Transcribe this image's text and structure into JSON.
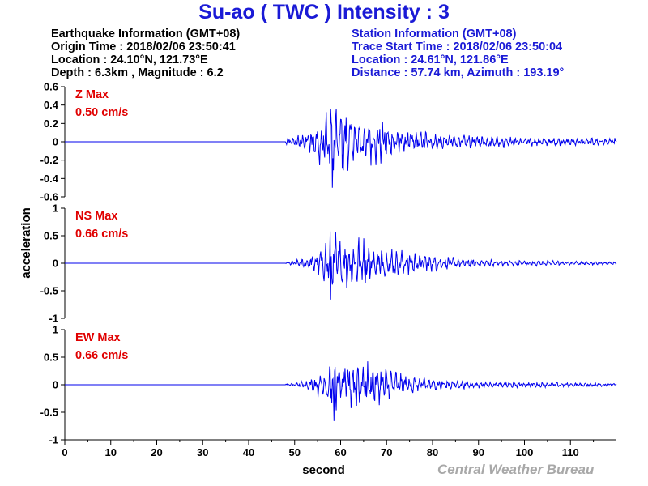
{
  "title": "Su-ao ( TWC ) Intensity : 3",
  "earthquake": {
    "heading": "Earthquake Information  (GMT+08)",
    "origin_time": "Origin Time : 2018/02/06 23:50:41",
    "location": "Location : 24.10°N, 121.73°E",
    "depth_magnitude": "Depth : 6.3km , Magnitude : 6.2"
  },
  "station": {
    "heading": "Station Information  (GMT+08)",
    "trace_start": "Trace Start Time : 2018/02/06 23:50:04",
    "location": "Location : 24.61°N, 121.86°E",
    "distance": "Distance : 57.74 km, Azimuth : 193.19°"
  },
  "credit": "Central Weather Bureau",
  "colors": {
    "title": "#1a1ad6",
    "trace": "#0000ee",
    "max_label": "#e00000",
    "credit": "#a8a8a8"
  },
  "chart_data": [
    {
      "type": "line",
      "component": "Z",
      "max_label": "Z Max",
      "max_value": "0.50 cm/s",
      "ylim": [
        -0.6,
        0.6
      ],
      "yticks": [
        "0.6",
        "0.4",
        "0.2",
        "0",
        "-0.2",
        "-0.4",
        "-0.6"
      ],
      "xlim": [
        0,
        120
      ],
      "signal_start": 48,
      "peak": 0.5,
      "envelope": [
        [
          48,
          0.03
        ],
        [
          50,
          0.06
        ],
        [
          53,
          0.12
        ],
        [
          56,
          0.28
        ],
        [
          58,
          0.45
        ],
        [
          60,
          0.4
        ],
        [
          62,
          0.38
        ],
        [
          64,
          0.32
        ],
        [
          67,
          0.25
        ],
        [
          70,
          0.2
        ],
        [
          75,
          0.13
        ],
        [
          80,
          0.1
        ],
        [
          85,
          0.08
        ],
        [
          90,
          0.07
        ],
        [
          100,
          0.05
        ],
        [
          110,
          0.04
        ],
        [
          120,
          0.04
        ]
      ]
    },
    {
      "type": "line",
      "component": "NS",
      "max_label": "NS Max",
      "max_value": "0.66 cm/s",
      "ylim": [
        -1,
        1
      ],
      "yticks": [
        "1",
        "0.5",
        "0",
        "-0.5",
        "-1"
      ],
      "xlim": [
        0,
        120
      ],
      "signal_start": 48,
      "peak": 0.66,
      "envelope": [
        [
          48,
          0.02
        ],
        [
          50,
          0.05
        ],
        [
          53,
          0.1
        ],
        [
          56,
          0.3
        ],
        [
          58,
          0.6
        ],
        [
          60,
          0.5
        ],
        [
          62,
          0.45
        ],
        [
          64,
          0.45
        ],
        [
          67,
          0.35
        ],
        [
          70,
          0.3
        ],
        [
          75,
          0.22
        ],
        [
          80,
          0.15
        ],
        [
          85,
          0.1
        ],
        [
          90,
          0.07
        ],
        [
          100,
          0.05
        ],
        [
          110,
          0.04
        ],
        [
          120,
          0.03
        ]
      ]
    },
    {
      "type": "line",
      "component": "EW",
      "max_label": "EW Max",
      "max_value": "0.66 cm/s",
      "ylim": [
        -1,
        1
      ],
      "yticks": [
        "1",
        "0.5",
        "0",
        "-0.5",
        "-1"
      ],
      "xlim": [
        0,
        120
      ],
      "signal_start": 48,
      "peak": 0.66,
      "envelope": [
        [
          48,
          0.02
        ],
        [
          50,
          0.04
        ],
        [
          53,
          0.08
        ],
        [
          56,
          0.25
        ],
        [
          58,
          0.5
        ],
        [
          60,
          0.4
        ],
        [
          62,
          0.42
        ],
        [
          64,
          0.5
        ],
        [
          67,
          0.35
        ],
        [
          70,
          0.3
        ],
        [
          75,
          0.18
        ],
        [
          80,
          0.1
        ],
        [
          85,
          0.08
        ],
        [
          90,
          0.06
        ],
        [
          100,
          0.05
        ],
        [
          110,
          0.04
        ],
        [
          120,
          0.03
        ]
      ]
    }
  ],
  "xaxis": {
    "label": "second",
    "ticks": [
      0,
      10,
      20,
      30,
      40,
      50,
      60,
      70,
      80,
      90,
      100,
      110
    ]
  },
  "yaxis_label": "acceleration"
}
